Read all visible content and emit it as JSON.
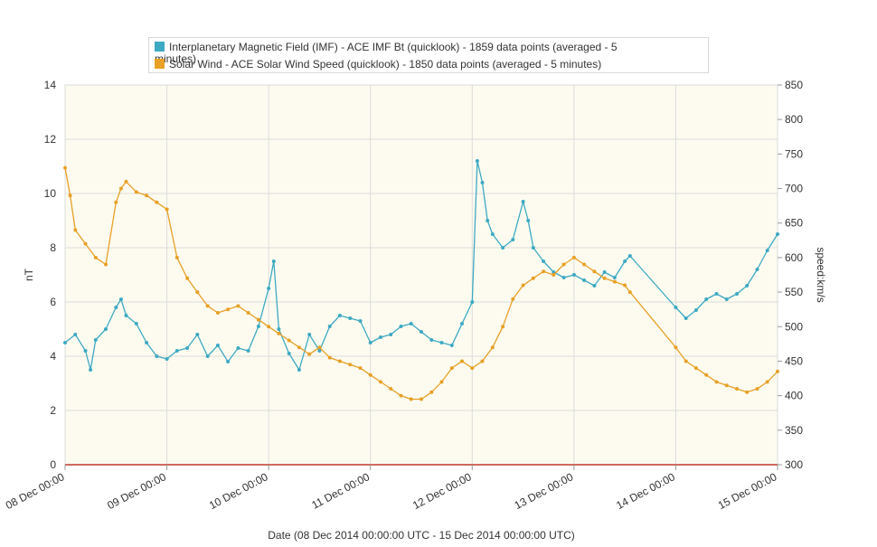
{
  "chart_data": {
    "type": "line",
    "xlabel": "Date (08 Dec 2014 00:00:00 UTC - 15 Dec 2014 00:00:00 UTC)",
    "x_ticks": [
      "08 Dec 00:00",
      "09 Dec 00:00",
      "10 Dec 00:00",
      "11 Dec 00:00",
      "12 Dec 00:00",
      "13 Dec 00:00",
      "14 Dec 00:00",
      "15 Dec 00:00"
    ],
    "xlim": [
      "2014-12-08 00:00",
      "2014-12-15 00:00"
    ],
    "y_left": {
      "label": "nT",
      "lim": [
        0,
        14
      ],
      "ticks": [
        0,
        2,
        4,
        6,
        8,
        10,
        12,
        14
      ]
    },
    "y_right": {
      "label": "speed:km/s",
      "lim": [
        300,
        850
      ],
      "ticks": [
        300,
        350,
        400,
        450,
        500,
        550,
        600,
        650,
        700,
        750,
        800,
        850
      ]
    },
    "legend_position": "top",
    "grid": true,
    "series": [
      {
        "name": "Interplanetary Magnetic Field (IMF) - ACE IMF Bt (quicklook) - 1859 data points (averaged - 5 minutes)",
        "color": "#3ea9c3",
        "axis": "left",
        "x_unit": "days since 08 Dec 00:00",
        "x": [
          0,
          0.1,
          0.2,
          0.25,
          0.3,
          0.4,
          0.5,
          0.55,
          0.6,
          0.7,
          0.8,
          0.9,
          1.0,
          1.1,
          1.2,
          1.3,
          1.4,
          1.5,
          1.6,
          1.7,
          1.8,
          1.9,
          2.0,
          2.05,
          2.1,
          2.2,
          2.3,
          2.4,
          2.5,
          2.6,
          2.7,
          2.8,
          2.9,
          3.0,
          3.1,
          3.2,
          3.3,
          3.4,
          3.5,
          3.6,
          3.7,
          3.8,
          3.9,
          4.0,
          4.05,
          4.1,
          4.15,
          4.2,
          4.3,
          4.4,
          4.5,
          4.55,
          4.6,
          4.7,
          4.8,
          4.9,
          5.0,
          5.1,
          5.2,
          5.3,
          5.4,
          5.5,
          5.55,
          6.0,
          6.1,
          6.2,
          6.3,
          6.4,
          6.5,
          6.6,
          6.7,
          6.8,
          6.9,
          7.0
        ],
        "values": [
          4.5,
          4.8,
          4.2,
          3.5,
          4.6,
          5.0,
          5.8,
          6.1,
          5.5,
          5.2,
          4.5,
          4.0,
          3.9,
          4.2,
          4.3,
          4.8,
          4.0,
          4.4,
          3.8,
          4.3,
          4.2,
          5.1,
          6.5,
          7.5,
          5.0,
          4.1,
          3.5,
          4.8,
          4.2,
          5.1,
          5.5,
          5.4,
          5.3,
          4.5,
          4.7,
          4.8,
          5.1,
          5.2,
          4.9,
          4.6,
          4.5,
          4.4,
          5.2,
          6.0,
          11.2,
          10.4,
          9.0,
          8.5,
          8.0,
          8.3,
          9.7,
          9.0,
          8.0,
          7.5,
          7.1,
          6.9,
          7.0,
          6.8,
          6.6,
          7.1,
          6.9,
          7.5,
          7.7,
          5.8,
          5.4,
          5.7,
          6.1,
          6.3,
          6.1,
          6.3,
          6.6,
          7.2,
          7.9,
          8.5
        ]
      },
      {
        "name": "Solar Wind - ACE Solar Wind Speed (quicklook) - 1850 data points (averaged - 5 minutes)",
        "color": "#e8a025",
        "axis": "right",
        "x_unit": "days since 08 Dec 00:00",
        "x": [
          0,
          0.05,
          0.1,
          0.2,
          0.3,
          0.4,
          0.5,
          0.55,
          0.6,
          0.7,
          0.8,
          0.9,
          1.0,
          1.1,
          1.2,
          1.3,
          1.4,
          1.5,
          1.6,
          1.7,
          1.8,
          1.9,
          2.0,
          2.1,
          2.2,
          2.3,
          2.4,
          2.5,
          2.6,
          2.7,
          2.8,
          2.9,
          3.0,
          3.1,
          3.2,
          3.3,
          3.4,
          3.5,
          3.6,
          3.7,
          3.8,
          3.9,
          4.0,
          4.1,
          4.2,
          4.3,
          4.4,
          4.5,
          4.6,
          4.7,
          4.8,
          4.9,
          5.0,
          5.1,
          5.2,
          5.3,
          5.4,
          5.5,
          5.55,
          6.0,
          6.1,
          6.2,
          6.3,
          6.4,
          6.5,
          6.6,
          6.7,
          6.8,
          6.9,
          7.0
        ],
        "values": [
          730,
          690,
          640,
          620,
          600,
          590,
          680,
          700,
          710,
          695,
          690,
          680,
          670,
          600,
          570,
          550,
          530,
          520,
          525,
          530,
          520,
          510,
          500,
          490,
          480,
          470,
          460,
          470,
          455,
          450,
          445,
          440,
          430,
          420,
          410,
          400,
          395,
          395,
          405,
          420,
          440,
          450,
          440,
          450,
          470,
          500,
          540,
          560,
          570,
          580,
          575,
          590,
          600,
          590,
          580,
          570,
          565,
          560,
          550,
          470,
          450,
          440,
          430,
          420,
          415,
          410,
          405,
          410,
          420,
          435
        ]
      }
    ]
  }
}
